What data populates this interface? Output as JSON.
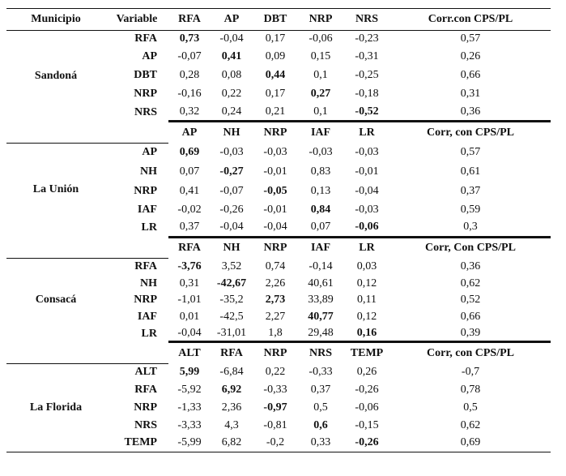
{
  "header": {
    "municipio": "Municipio",
    "variable": "Variable"
  },
  "blocks": [
    {
      "municipio": "Sandoná",
      "columns": [
        "RFA",
        "AP",
        "DBT",
        "NRP",
        "NRS",
        "Corr.con CPS/PL"
      ],
      "rows": [
        {
          "var": "RFA",
          "values": [
            "0,73",
            "-0,04",
            "0,17",
            "-0,06",
            "-0,23",
            "0,57"
          ],
          "bold_index": 0
        },
        {
          "var": "AP",
          "values": [
            "-0,07",
            "0,41",
            "0,09",
            "0,15",
            "-0,31",
            "0,26"
          ],
          "bold_index": 1
        },
        {
          "var": "DBT",
          "values": [
            "0,28",
            "0,08",
            "0,44",
            "0,1",
            "-0,25",
            "0,66"
          ],
          "bold_index": 2
        },
        {
          "var": "NRP",
          "values": [
            "-0,16",
            "0,22",
            "0,17",
            "0,27",
            "-0,18",
            "0,31"
          ],
          "bold_index": 3
        },
        {
          "var": "NRS",
          "values": [
            "0,32",
            "0,24",
            "0,21",
            "0,1",
            "-0,52",
            "0,36"
          ],
          "bold_index": 4
        }
      ]
    },
    {
      "municipio": "La Unión",
      "columns": [
        "AP",
        "NH",
        "NRP",
        "IAF",
        "LR",
        "Corr, con CPS/PL"
      ],
      "rows": [
        {
          "var": "AP",
          "values": [
            "0,69",
            "-0,03",
            "-0,03",
            "-0,03",
            "-0,03",
            "0,57"
          ],
          "bold_index": 0
        },
        {
          "var": "NH",
          "values": [
            "0,07",
            "-0,27",
            "-0,01",
            "0,83",
            "-0,01",
            "0,61"
          ],
          "bold_index": 1
        },
        {
          "var": "NRP",
          "values": [
            "0,41",
            "-0,07",
            "-0,05",
            "0,13",
            "-0,04",
            "0,37"
          ],
          "bold_index": 2
        },
        {
          "var": "IAF",
          "values": [
            "-0,02",
            "-0,26",
            "-0,01",
            "0,84",
            "-0,03",
            "0,59"
          ],
          "bold_index": 3
        },
        {
          "var": "LR",
          "values": [
            "0,37",
            "-0,04",
            "-0,04",
            "0,07",
            "-0,06",
            "0,3"
          ],
          "bold_index": 4
        }
      ]
    },
    {
      "municipio": "Consacá",
      "columns": [
        "RFA",
        "NH",
        "NRP",
        "IAF",
        "LR",
        "Corr, Con CPS/PL"
      ],
      "rows": [
        {
          "var": "RFA",
          "values": [
            "-3,76",
            "3,52",
            "0,74",
            "-0,14",
            "0,03",
            "0,36"
          ],
          "bold_index": 0
        },
        {
          "var": "NH",
          "values": [
            "0,31",
            "-42,67",
            "2,26",
            "40,61",
            "0,12",
            "0,62"
          ],
          "bold_index": 1
        },
        {
          "var": "NRP",
          "values": [
            "-1,01",
            "-35,2",
            "2,73",
            "33,89",
            "0,11",
            "0,52"
          ],
          "bold_index": 2
        },
        {
          "var": "IAF",
          "values": [
            "0,01",
            "-42,5",
            "2,27",
            "40,77",
            "0,12",
            "0,66"
          ],
          "bold_index": 3
        },
        {
          "var": "LR",
          "values": [
            "-0,04",
            "-31,01",
            "1,8",
            "29,48",
            "0,16",
            "0,39"
          ],
          "bold_index": 4
        }
      ]
    },
    {
      "municipio": "La Florida",
      "columns": [
        "ALT",
        "RFA",
        "NRP",
        "NRS",
        "TEMP",
        "Corr, con CPS/PL"
      ],
      "rows": [
        {
          "var": "ALT",
          "values": [
            "5,99",
            "-6,84",
            "0,22",
            "-0,33",
            "0,26",
            "-0,7"
          ],
          "bold_index": 0
        },
        {
          "var": "RFA",
          "values": [
            "-5,92",
            "6,92",
            "-0,33",
            "0,37",
            "-0,26",
            "0,78"
          ],
          "bold_index": 1
        },
        {
          "var": "NRP",
          "values": [
            "-1,33",
            "2,36",
            "-0,97",
            "0,5",
            "-0,06",
            "0,5"
          ],
          "bold_index": 2
        },
        {
          "var": "NRS",
          "values": [
            "-3,33",
            "4,3",
            "-0,81",
            "0,6",
            "-0,15",
            "0,62"
          ],
          "bold_index": 3
        },
        {
          "var": "TEMP",
          "values": [
            "-5,99",
            "6,82",
            "-0,2",
            "0,33",
            "-0,26",
            "0,69"
          ],
          "bold_index": 4
        }
      ]
    }
  ]
}
